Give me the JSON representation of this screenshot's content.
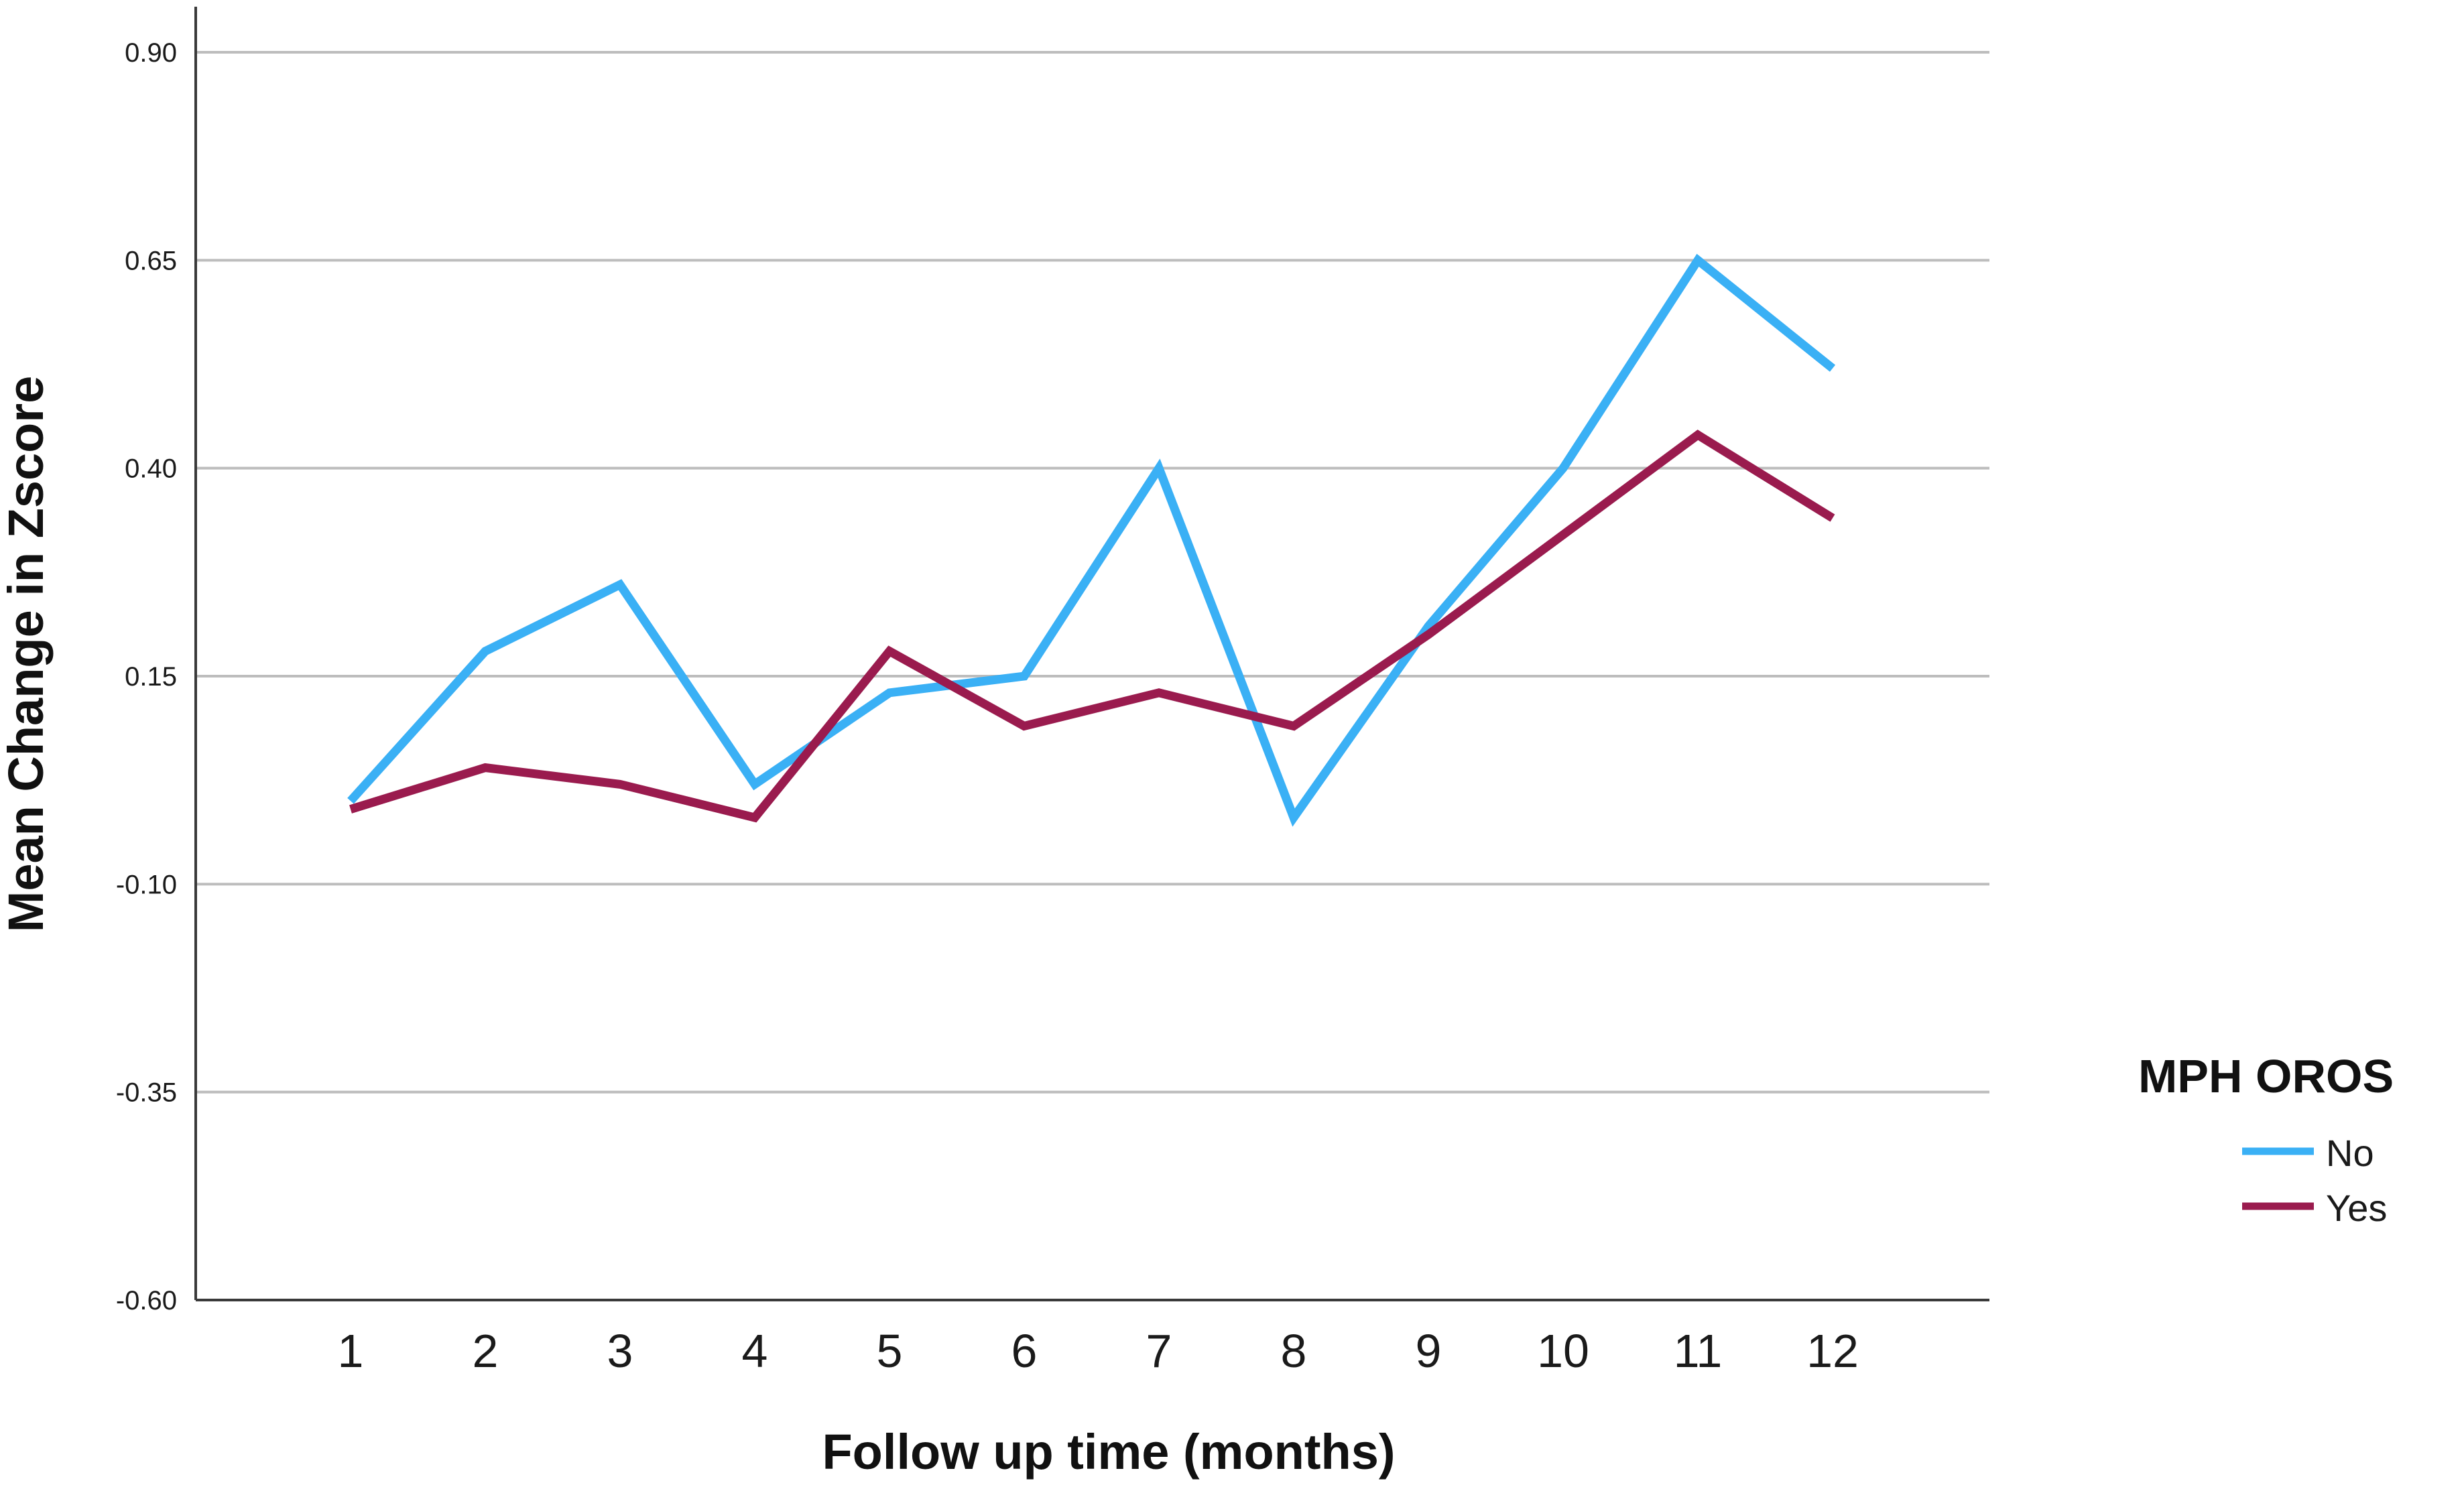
{
  "chart_data": {
    "type": "line",
    "xlabel": "Follow up time (months)",
    "ylabel": "Mean Change in Zscore",
    "x": [
      1,
      2,
      3,
      4,
      5,
      6,
      7,
      8,
      9,
      10,
      11,
      12
    ],
    "ylim": [
      -0.6,
      0.9
    ],
    "yticks": [
      "0.90",
      "0.65",
      "0.40",
      "0.15",
      "-0.10",
      "-0.35",
      "-0.60"
    ],
    "grid": true,
    "legend": {
      "title": "MPH OROS",
      "position": "right"
    },
    "series": [
      {
        "name": "No",
        "color": "#3ab0f5",
        "values": [
          0.0,
          0.18,
          0.26,
          0.02,
          0.13,
          0.15,
          0.4,
          -0.02,
          0.21,
          0.4,
          0.65,
          0.52
        ]
      },
      {
        "name": "Yes",
        "color": "#9a1b4e",
        "values": [
          -0.01,
          0.04,
          0.02,
          -0.02,
          0.18,
          0.09,
          0.13,
          0.09,
          0.2,
          0.32,
          0.44,
          0.34
        ]
      }
    ]
  }
}
